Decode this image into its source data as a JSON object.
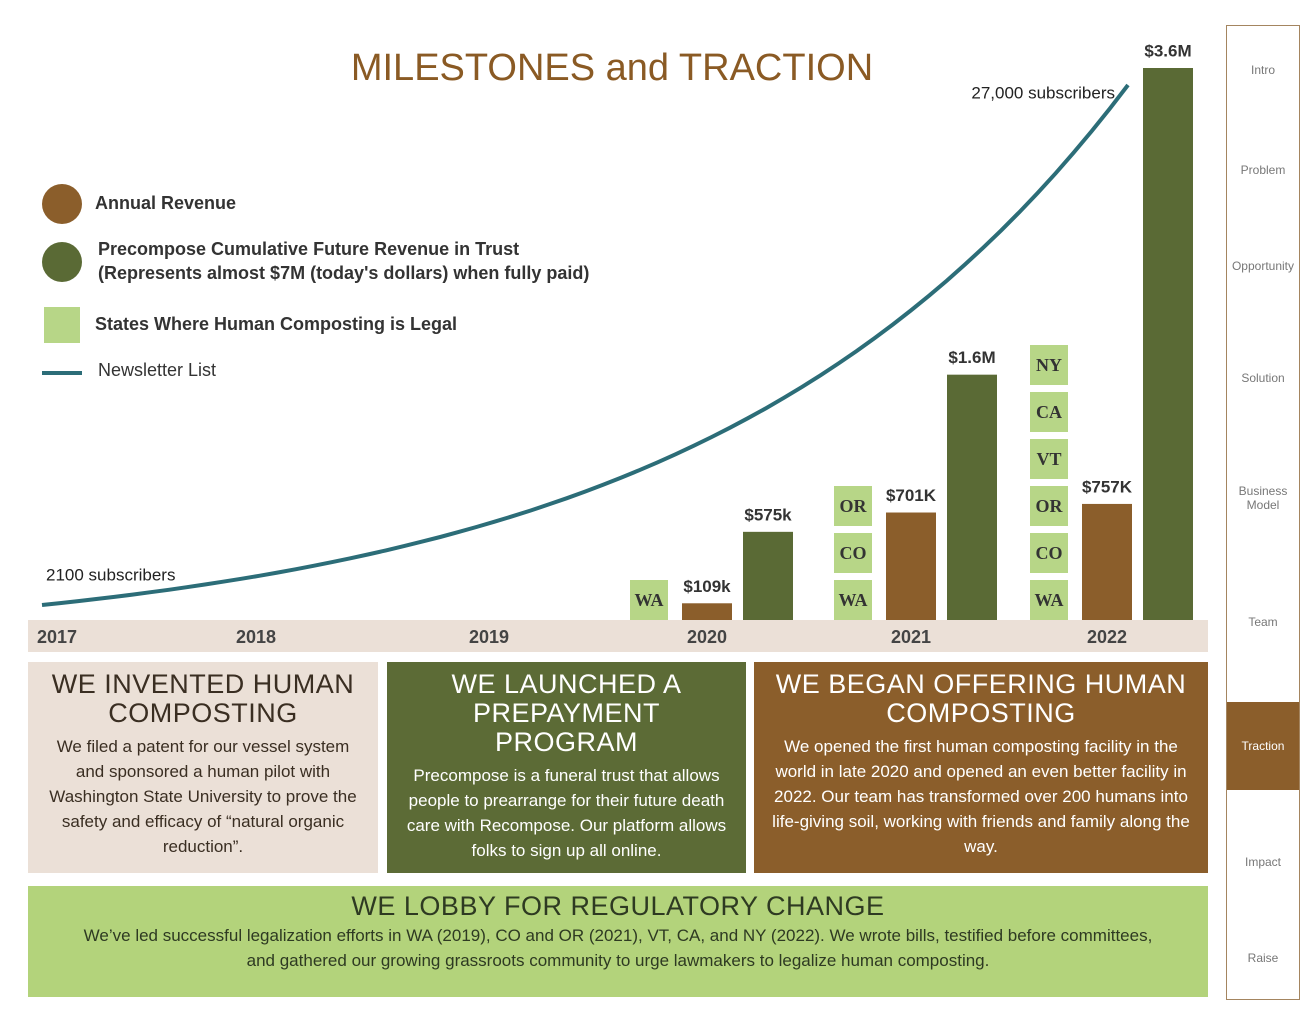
{
  "title": "MILESTONES and TRACTION",
  "chart_data": {
    "type": "bar",
    "categories": [
      "2017",
      "2018",
      "2019",
      "2020",
      "2021",
      "2022"
    ],
    "series": [
      {
        "name": "Annual Revenue",
        "color": "#8b5e2b",
        "values": [
          null,
          null,
          null,
          109000,
          701000,
          757000
        ],
        "value_labels": [
          null,
          null,
          null,
          "$109k",
          "$701K",
          "$757K"
        ]
      },
      {
        "name": "Precompose Cumulative Future Revenue in Trust",
        "note": "(Represents almost $7M (today's dollars) when fully paid)",
        "color": "#5a6a35",
        "values": [
          null,
          null,
          null,
          575000,
          1600000,
          3600000
        ],
        "value_labels": [
          null,
          null,
          null,
          "$575k",
          "$1.6M",
          "$3.6M"
        ]
      }
    ],
    "states": {
      "name": "States Where Human Composting is Legal",
      "color": "#b7d687",
      "values": [
        [],
        [],
        [],
        [
          "WA"
        ],
        [
          "WA",
          "CO",
          "OR"
        ],
        [
          "WA",
          "CO",
          "OR",
          "VT",
          "CA",
          "NY"
        ]
      ]
    },
    "line": {
      "name": "Newsletter List",
      "color": "#2c6d78",
      "values": [
        2100,
        27000
      ],
      "value_labels": [
        "2100 subscribers",
        "27,000 subscribers"
      ]
    }
  },
  "panels": [
    {
      "title": "WE INVENTED HUMAN COMPOSTING",
      "text": "We filed a patent for our vessel system and sponsored a human pilot with Washington State University to prove the safety and efficacy of “natural organic reduction”."
    },
    {
      "title": "WE LAUNCHED A PREPAYMENT PROGRAM",
      "text": "Precompose is a funeral trust that allows people to prearrange for their future death care with Recompose. Our platform allows folks to sign up all online."
    },
    {
      "title": "WE BEGAN OFFERING HUMAN COMPOSTING",
      "text": "We opened the first human composting facility in the world in late 2020 and opened an even better facility in 2022. Our team has transformed over 200 humans into life-giving soil, working with friends and family along the way."
    }
  ],
  "lobby": {
    "title": "WE LOBBY FOR REGULATORY CHANGE",
    "text": "We’ve led successful legalization efforts in WA (2019), CO and OR (2021), VT, CA, and NY (2022). We wrote bills, testified before committees, and gathered our growing grassroots community to urge lawmakers to legalize human composting."
  },
  "nav": {
    "items": [
      "Intro",
      "Problem",
      "Opportunity",
      "Solution",
      "Business Model",
      "Team",
      "Traction",
      "Impact",
      "Raise"
    ],
    "active": 6
  }
}
